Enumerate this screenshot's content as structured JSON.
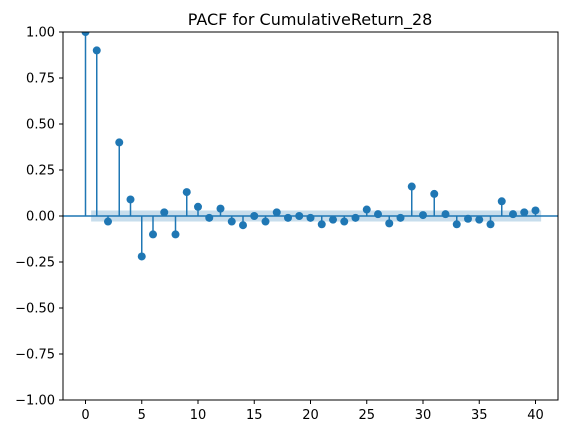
{
  "chart_data": {
    "type": "stem",
    "title": "PACF for CumulativeReturn_28",
    "xlabel": "",
    "ylabel": "",
    "xlim": [
      -2,
      42
    ],
    "ylim": [
      -1.0,
      1.0
    ],
    "x_ticks": [
      0,
      5,
      10,
      15,
      20,
      25,
      30,
      35,
      40
    ],
    "x_tick_labels": [
      "0",
      "5",
      "10",
      "15",
      "20",
      "25",
      "30",
      "35",
      "40"
    ],
    "y_ticks": [
      1.0,
      0.75,
      0.5,
      0.25,
      0.0,
      -0.25,
      -0.5,
      -0.75,
      -1.0
    ],
    "y_tick_labels": [
      "1.00",
      "0.75",
      "0.50",
      "0.25",
      "0.00",
      "−0.25",
      "−0.50",
      "−0.75",
      "−1.00"
    ],
    "lags": [
      0,
      1,
      2,
      3,
      4,
      5,
      6,
      7,
      8,
      9,
      10,
      11,
      12,
      13,
      14,
      15,
      16,
      17,
      18,
      19,
      20,
      21,
      22,
      23,
      24,
      25,
      26,
      27,
      28,
      29,
      30,
      31,
      32,
      33,
      34,
      35,
      36,
      37,
      38,
      39,
      40
    ],
    "values": [
      1.0,
      0.9,
      -0.03,
      0.4,
      0.09,
      -0.22,
      -0.1,
      0.02,
      -0.1,
      0.13,
      0.05,
      -0.01,
      0.04,
      -0.03,
      -0.05,
      0.0,
      -0.03,
      0.02,
      -0.01,
      0.0,
      -0.01,
      -0.045,
      -0.02,
      -0.03,
      -0.01,
      0.035,
      0.01,
      -0.04,
      -0.01,
      0.16,
      0.005,
      0.12,
      0.01,
      -0.045,
      -0.015,
      -0.02,
      -0.045,
      0.08,
      0.01,
      0.02,
      0.03
    ],
    "confidence_band": 0.03,
    "grid": false,
    "colors": {
      "stem": "#1f77b4",
      "marker": "#1f77b4",
      "band": "#1f77b4",
      "zero_line": "#1f77b4"
    }
  }
}
